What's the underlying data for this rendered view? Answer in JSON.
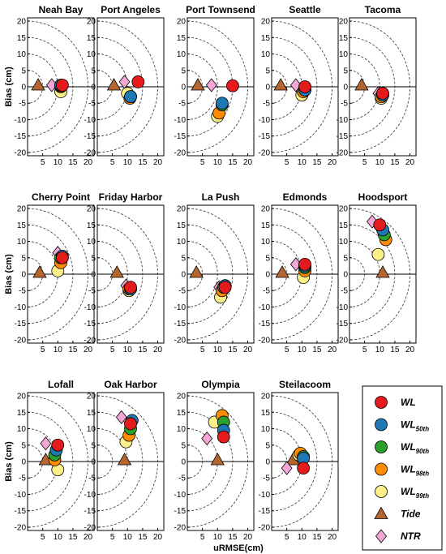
{
  "chart_data": {
    "type": "scatter",
    "xlabel": "uRMSE(cm)",
    "ylabel": "Bias (cm)",
    "xlim": [
      0,
      22
    ],
    "ylim": [
      -21,
      21
    ],
    "xticks": [
      5,
      10,
      15,
      20
    ],
    "yticks": [
      20,
      15,
      10,
      5,
      0,
      -5,
      -10,
      -15,
      -20
    ],
    "circle_radii": [
      5,
      10,
      15,
      20
    ],
    "colors": {
      "WL": "#e41a1c",
      "WL50th": "#1f78b4",
      "WL90th": "#2ca02c",
      "WL98th": "#ff8c00",
      "WL99th": "#fdf08a",
      "Tide": "#b5652f",
      "NTR": "#f4a6d7"
    },
    "legend": {
      "position": "lower-right panel",
      "entries": [
        {
          "key": "WL",
          "label": "WL",
          "sub": "",
          "marker": "circle"
        },
        {
          "key": "WL50th",
          "label": "WL",
          "sub": "50th",
          "marker": "circle"
        },
        {
          "key": "WL90th",
          "label": "WL",
          "sub": "90th",
          "marker": "circle"
        },
        {
          "key": "WL98th",
          "label": "WL",
          "sub": "98th",
          "marker": "circle"
        },
        {
          "key": "WL99th",
          "label": "WL",
          "sub": "99th",
          "marker": "circle"
        },
        {
          "key": "Tide",
          "label": "Tide",
          "sub": "",
          "marker": "triangle"
        },
        {
          "key": "NTR",
          "label": "NTR",
          "sub": "",
          "marker": "diamond"
        }
      ]
    },
    "panels": [
      {
        "title": "Neah Bay",
        "points": {
          "WL": [
            11.5,
            0.5
          ],
          "WL50th": [
            11,
            0.5
          ],
          "WL90th": [
            11,
            0.3
          ],
          "WL98th": [
            11,
            0
          ],
          "WL99th": [
            11,
            -1.5
          ],
          "Tide": [
            3.5,
            0.5
          ],
          "NTR": [
            8,
            0.5
          ]
        }
      },
      {
        "title": "Port Angeles",
        "points": {
          "WL": [
            13.5,
            1.5
          ],
          "WL50th": [
            11,
            -3
          ],
          "WL90th": [
            11,
            -3
          ],
          "WL98th": [
            10.8,
            -3.5
          ],
          "WL99th": [
            10,
            -2
          ],
          "Tide": [
            5.5,
            0.5
          ],
          "NTR": [
            9,
            1.5
          ]
        }
      },
      {
        "title": "Port Townsend",
        "points": {
          "WL": [
            15,
            0.3
          ],
          "WL50th": [
            11.5,
            -5
          ],
          "WL90th": [
            11.5,
            -5.5
          ],
          "WL98th": [
            10.5,
            -8
          ],
          "WL99th": [
            10,
            -9
          ],
          "Tide": [
            3.5,
            0.5
          ],
          "NTR": [
            8,
            0.5
          ]
        }
      },
      {
        "title": "Seattle",
        "points": {
          "WL": [
            11,
            0
          ],
          "WL50th": [
            11,
            -1
          ],
          "WL90th": [
            11,
            -1
          ],
          "WL98th": [
            10.5,
            -1.5
          ],
          "WL99th": [
            10,
            -2.5
          ],
          "Tide": [
            3,
            0.5
          ],
          "NTR": [
            8,
            0.5
          ]
        }
      },
      {
        "title": "Tacoma",
        "points": {
          "WL": [
            11,
            -2
          ],
          "WL50th": [
            11,
            -2.5
          ],
          "WL90th": [
            11,
            -2.5
          ],
          "WL98th": [
            10.5,
            -3
          ],
          "WL99th": [
            10.5,
            -3.5
          ],
          "Tide": [
            4,
            0.5
          ],
          "NTR": [
            9.5,
            -2
          ]
        }
      },
      {
        "title": "Cherry Point",
        "points": {
          "WL": [
            11.5,
            5
          ],
          "WL50th": [
            11.5,
            5.5
          ],
          "WL90th": [
            11,
            5
          ],
          "WL98th": [
            11,
            3.5
          ],
          "WL99th": [
            10,
            1
          ],
          "Tide": [
            4,
            0.5
          ],
          "NTR": [
            10,
            6.5
          ]
        }
      },
      {
        "title": "Friday Harbor",
        "points": {
          "WL": [
            11,
            -4
          ],
          "WL50th": [
            11,
            -4.5
          ],
          "WL90th": [
            11,
            -4.5
          ],
          "WL98th": [
            10.5,
            -4.5
          ],
          "WL99th": [
            10.5,
            -5
          ],
          "Tide": [
            6.5,
            0.5
          ],
          "NTR": [
            9.5,
            -3.5
          ]
        }
      },
      {
        "title": "La Push",
        "points": {
          "WL": [
            12.5,
            -4
          ],
          "WL50th": [
            12.5,
            -3.5
          ],
          "WL90th": [
            12,
            -4
          ],
          "WL98th": [
            11.5,
            -5
          ],
          "WL99th": [
            11,
            -7
          ],
          "Tide": [
            3,
            0.5
          ],
          "NTR": [
            10.5,
            -4
          ]
        }
      },
      {
        "title": "Edmonds",
        "points": {
          "WL": [
            11,
            3
          ],
          "WL50th": [
            11,
            2.5
          ],
          "WL90th": [
            11,
            2
          ],
          "WL98th": [
            11,
            1
          ],
          "WL99th": [
            10.5,
            -1
          ],
          "Tide": [
            3.5,
            0.5
          ],
          "NTR": [
            8,
            3
          ]
        }
      },
      {
        "title": "Hoodsport",
        "points": {
          "WL": [
            10,
            15
          ],
          "WL50th": [
            11,
            13.5
          ],
          "WL90th": [
            11.5,
            12
          ],
          "WL98th": [
            12,
            10.5
          ],
          "WL99th": [
            9.5,
            6
          ],
          "Tide": [
            11,
            0.5
          ],
          "NTR": [
            7.5,
            16
          ]
        }
      },
      {
        "title": "Lofall",
        "points": {
          "WL": [
            10,
            5
          ],
          "WL50th": [
            9.5,
            3.5
          ],
          "WL90th": [
            9,
            2
          ],
          "WL98th": [
            9,
            0.5
          ],
          "WL99th": [
            10,
            -2.5
          ],
          "Tide": [
            6,
            0.5
          ],
          "NTR": [
            6,
            5.5
          ]
        }
      },
      {
        "title": "Oak Harbor",
        "points": {
          "WL": [
            11,
            11.5
          ],
          "WL50th": [
            11.5,
            12.5
          ],
          "WL90th": [
            11,
            10
          ],
          "WL98th": [
            10.5,
            8
          ],
          "WL99th": [
            9.5,
            6
          ],
          "Tide": [
            9,
            0.5
          ],
          "NTR": [
            8,
            13.5
          ]
        }
      },
      {
        "title": "Olympia",
        "points": {
          "WL": [
            12,
            7.5
          ],
          "WL50th": [
            12,
            9.5
          ],
          "WL90th": [
            12,
            12
          ],
          "WL98th": [
            11.5,
            14
          ],
          "WL99th": [
            9,
            12
          ],
          "Tide": [
            10,
            0.5
          ],
          "NTR": [
            6.5,
            7
          ]
        }
      },
      {
        "title": "Steilacoom",
        "points": {
          "WL": [
            10.5,
            -2
          ],
          "WL50th": [
            10.5,
            1
          ],
          "WL90th": [
            10.5,
            1.5
          ],
          "WL98th": [
            9.5,
            2.5
          ],
          "WL99th": [
            9,
            2
          ],
          "Tide": [
            7,
            0.5
          ],
          "NTR": [
            5,
            -2
          ]
        }
      }
    ]
  }
}
